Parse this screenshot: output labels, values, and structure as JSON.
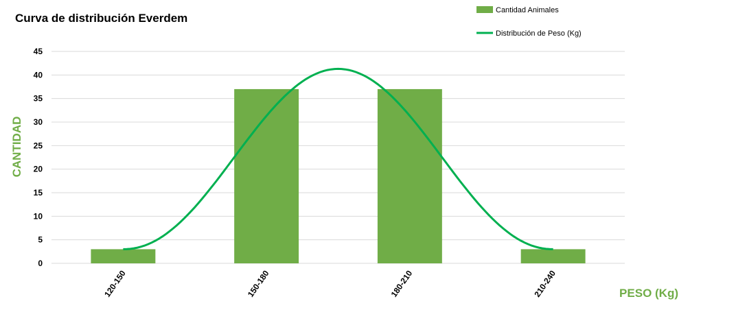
{
  "chart_data": {
    "type": "bar",
    "title": "Curva de distribución Everdem",
    "xlabel": "PESO (Kg)",
    "ylabel": "CANTIDAD",
    "categories": [
      "120-150",
      "150-180",
      "180-210",
      "210-240"
    ],
    "series": [
      {
        "name": "Cantidad Animales",
        "type": "bar",
        "values": [
          3,
          37,
          37,
          3
        ]
      },
      {
        "name": "Distribución de Peso (Kg)",
        "type": "line",
        "values": [
          3,
          37,
          37,
          3
        ],
        "peak": 41.3
      }
    ],
    "ylim": [
      0,
      45
    ],
    "yticks": [
      0,
      5,
      10,
      15,
      20,
      25,
      30,
      35,
      40,
      45
    ],
    "grid": true,
    "legend": "top-right",
    "colors": {
      "bar": "#70AD47",
      "line": "#00B050",
      "axis_title": "#70AD47",
      "grid": "#D9D9D9"
    }
  }
}
